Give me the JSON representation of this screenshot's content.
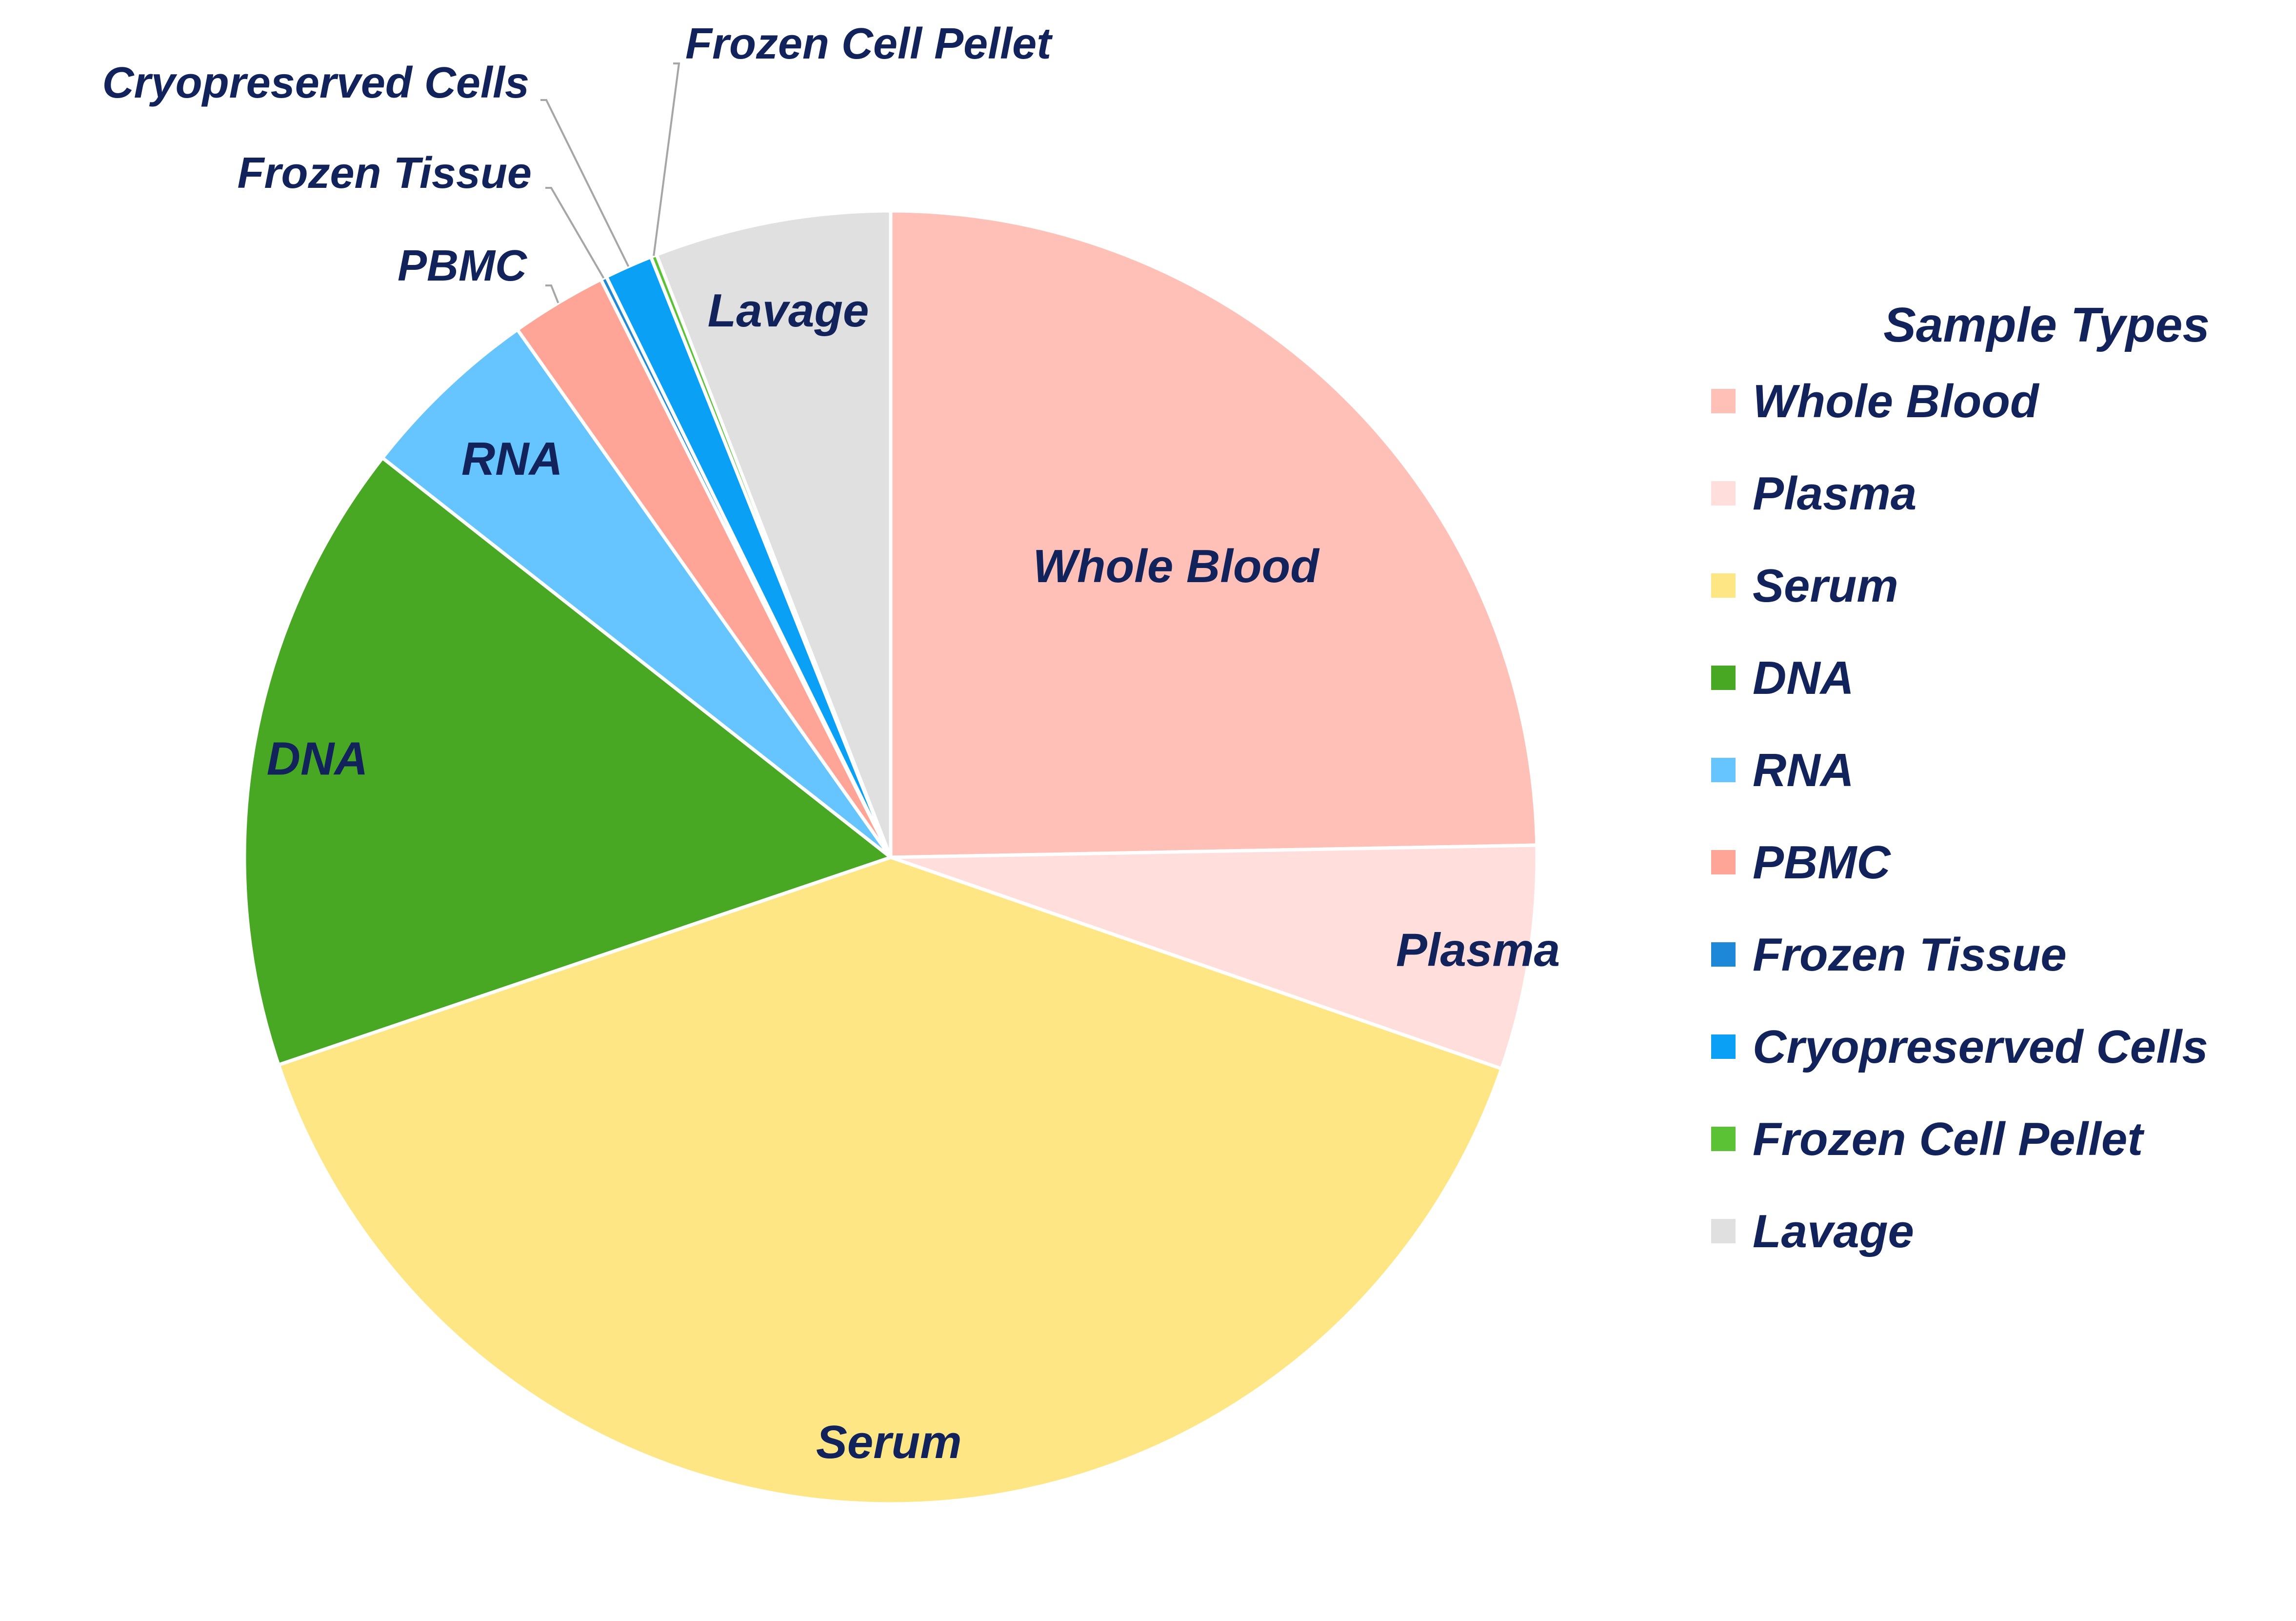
{
  "chart_data": {
    "type": "pie",
    "legend_title": "Sample Types",
    "legend_position": "right",
    "start_angle_deg": 0,
    "direction": "clockwise",
    "slices": [
      {
        "name": "Whole Blood",
        "value": 24.7,
        "color": "#FFC0B8",
        "label": "Whole Blood",
        "label_style": "inside"
      },
      {
        "name": "Plasma",
        "value": 5.6,
        "color": "#FFDEDC",
        "label": "Plasma",
        "label_style": "inside"
      },
      {
        "name": "Serum",
        "value": 39.5,
        "color": "#FFE685",
        "label": "Serum",
        "label_style": "inside"
      },
      {
        "name": "DNA",
        "value": 15.8,
        "color": "#49A823",
        "label": "DNA",
        "label_style": "inside"
      },
      {
        "name": "RNA",
        "value": 4.6,
        "color": "#66C4FF",
        "label": "RNA",
        "label_style": "inside"
      },
      {
        "name": "PBMC",
        "value": 2.4,
        "color": "#FFA597",
        "label": "PBMC",
        "label_style": "callout"
      },
      {
        "name": "Frozen Tissue",
        "value": 0.15,
        "color": "#1E88D8",
        "label": "Frozen Tissue",
        "label_style": "callout"
      },
      {
        "name": "Cryopreserved Cells",
        "value": 1.2,
        "color": "#0AA0F5",
        "label": "Cryopreserved Cells",
        "label_style": "callout"
      },
      {
        "name": "Frozen Cell Pellet",
        "value": 0.15,
        "color": "#5BC236",
        "label": "Frozen Cell Pellet",
        "label_style": "callout"
      },
      {
        "name": "Lavage",
        "value": 5.9,
        "color": "#E0E0E0",
        "label": "Lavage",
        "label_style": "inside"
      }
    ]
  }
}
